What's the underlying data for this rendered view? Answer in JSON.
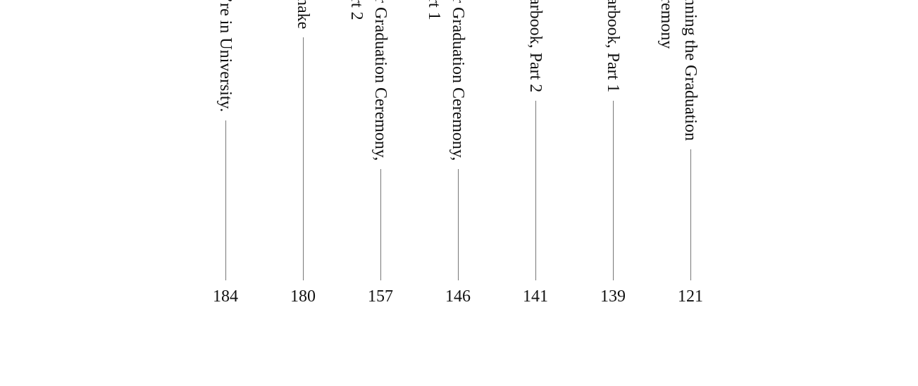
{
  "toc": {
    "entries": [
      {
        "lines": [
          "’re in University."
        ],
        "page": "184"
      },
      {
        "lines": [
          "nake"
        ],
        "page": "180"
      },
      {
        "lines": [
          "r Graduation Ceremony,",
          "rt 2"
        ],
        "page": "157"
      },
      {
        "lines": [
          "r Graduation Ceremony,",
          "rt 1"
        ],
        "page": "146"
      },
      {
        "lines": [
          "arbook, Part 2"
        ],
        "page": "141"
      },
      {
        "lines": [
          "arbook, Part 1"
        ],
        "page": "139"
      },
      {
        "lines": [
          "nning the Graduation",
          "remony"
        ],
        "page": "121"
      }
    ]
  }
}
